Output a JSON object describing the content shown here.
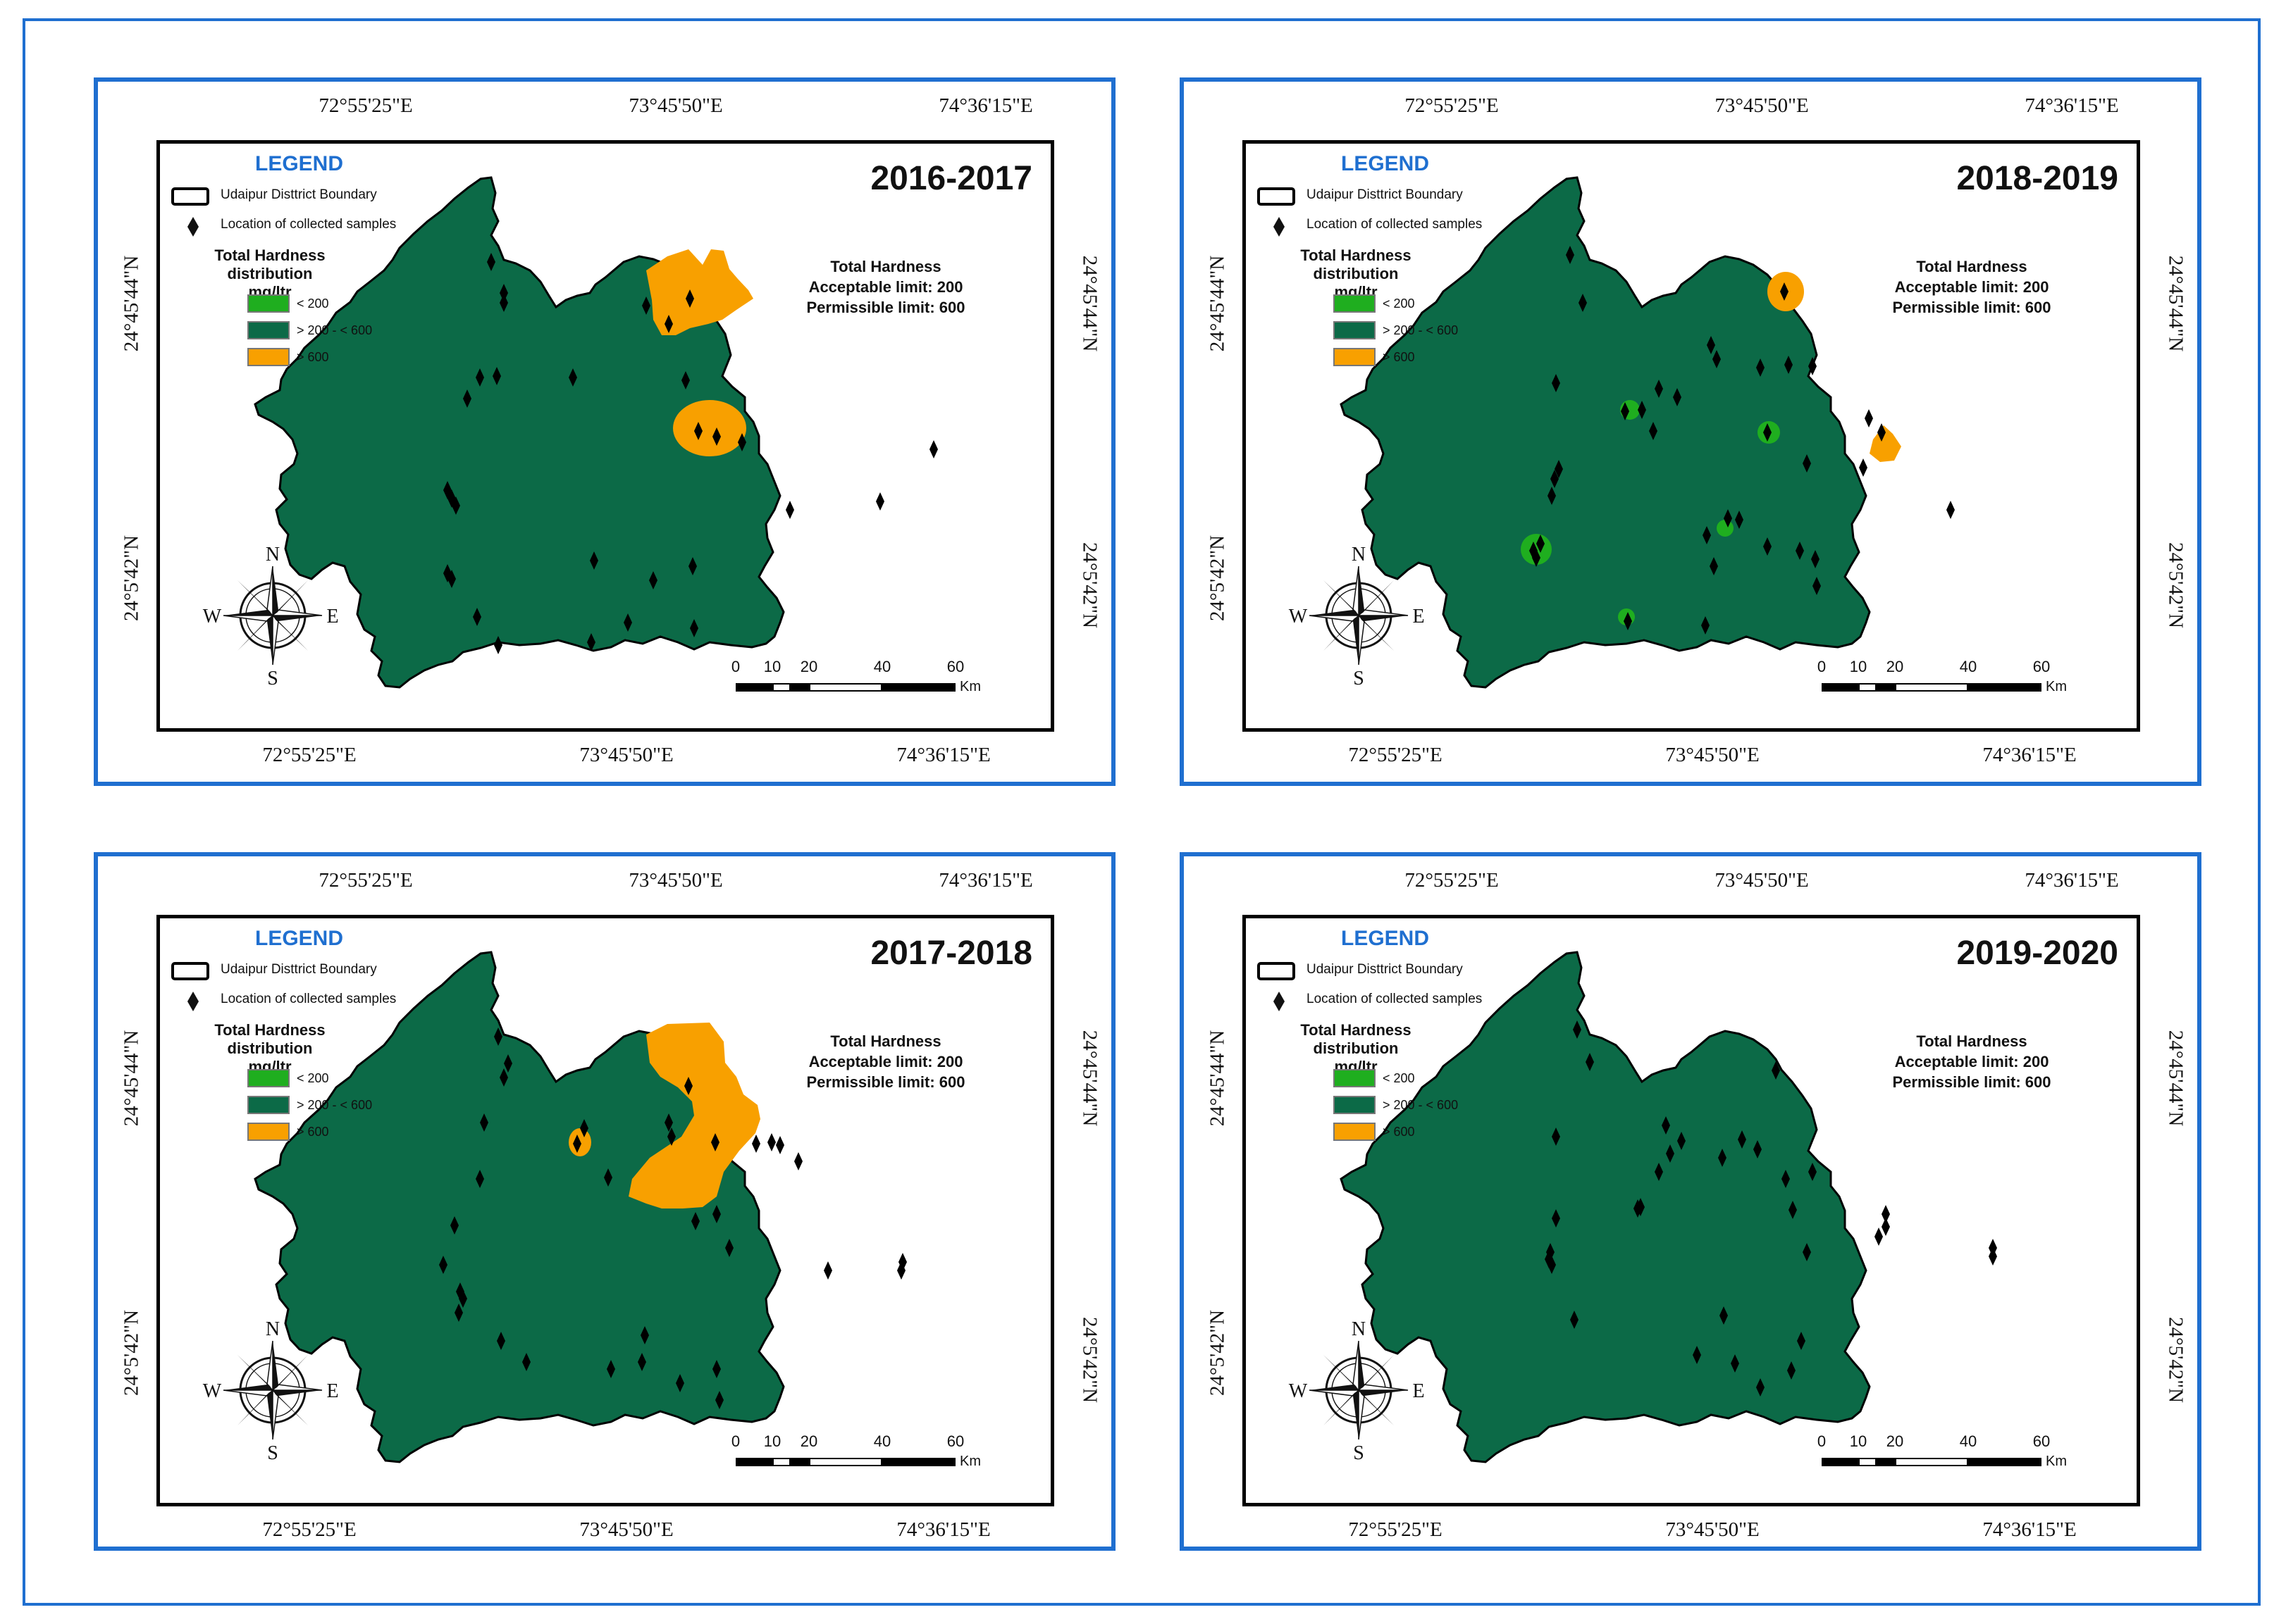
{
  "coordinates": {
    "lon": [
      "72°55'25\"E",
      "73°45'50\"E",
      "74°36'15\"E"
    ],
    "lat": [
      "24°45'44\"N",
      "24°5'42\"N"
    ]
  },
  "legend": {
    "title": "LEGEND",
    "boundary_label": "Udaipur Disttrict Boundary",
    "samples_label": "Location of collected samples",
    "hardness_heading_line1": "Total Hardness distribution",
    "hardness_heading_line2": "mg/ltr",
    "classes": [
      {
        "label": "< 200",
        "color": "#1fae1f"
      },
      {
        "label": "> 200 - < 600",
        "color": "#0c6a47"
      },
      {
        "label": "> 600",
        "color": "#f8a000"
      }
    ]
  },
  "hardness_info": {
    "title": "Total Hardness",
    "acceptable": "Acceptable limit: 200",
    "permissible": "Permissible limit: 600"
  },
  "scale_bar": {
    "ticks": [
      "0",
      "10",
      "20",
      "40",
      "60"
    ],
    "unit": "Km"
  },
  "compass": {
    "n": "N",
    "s": "S",
    "e": "E",
    "w": "W"
  },
  "panels": [
    {
      "year": "2016-2017"
    },
    {
      "year": "2018-2019"
    },
    {
      "year": "2017-2018"
    },
    {
      "year": "2019-2020"
    }
  ]
}
